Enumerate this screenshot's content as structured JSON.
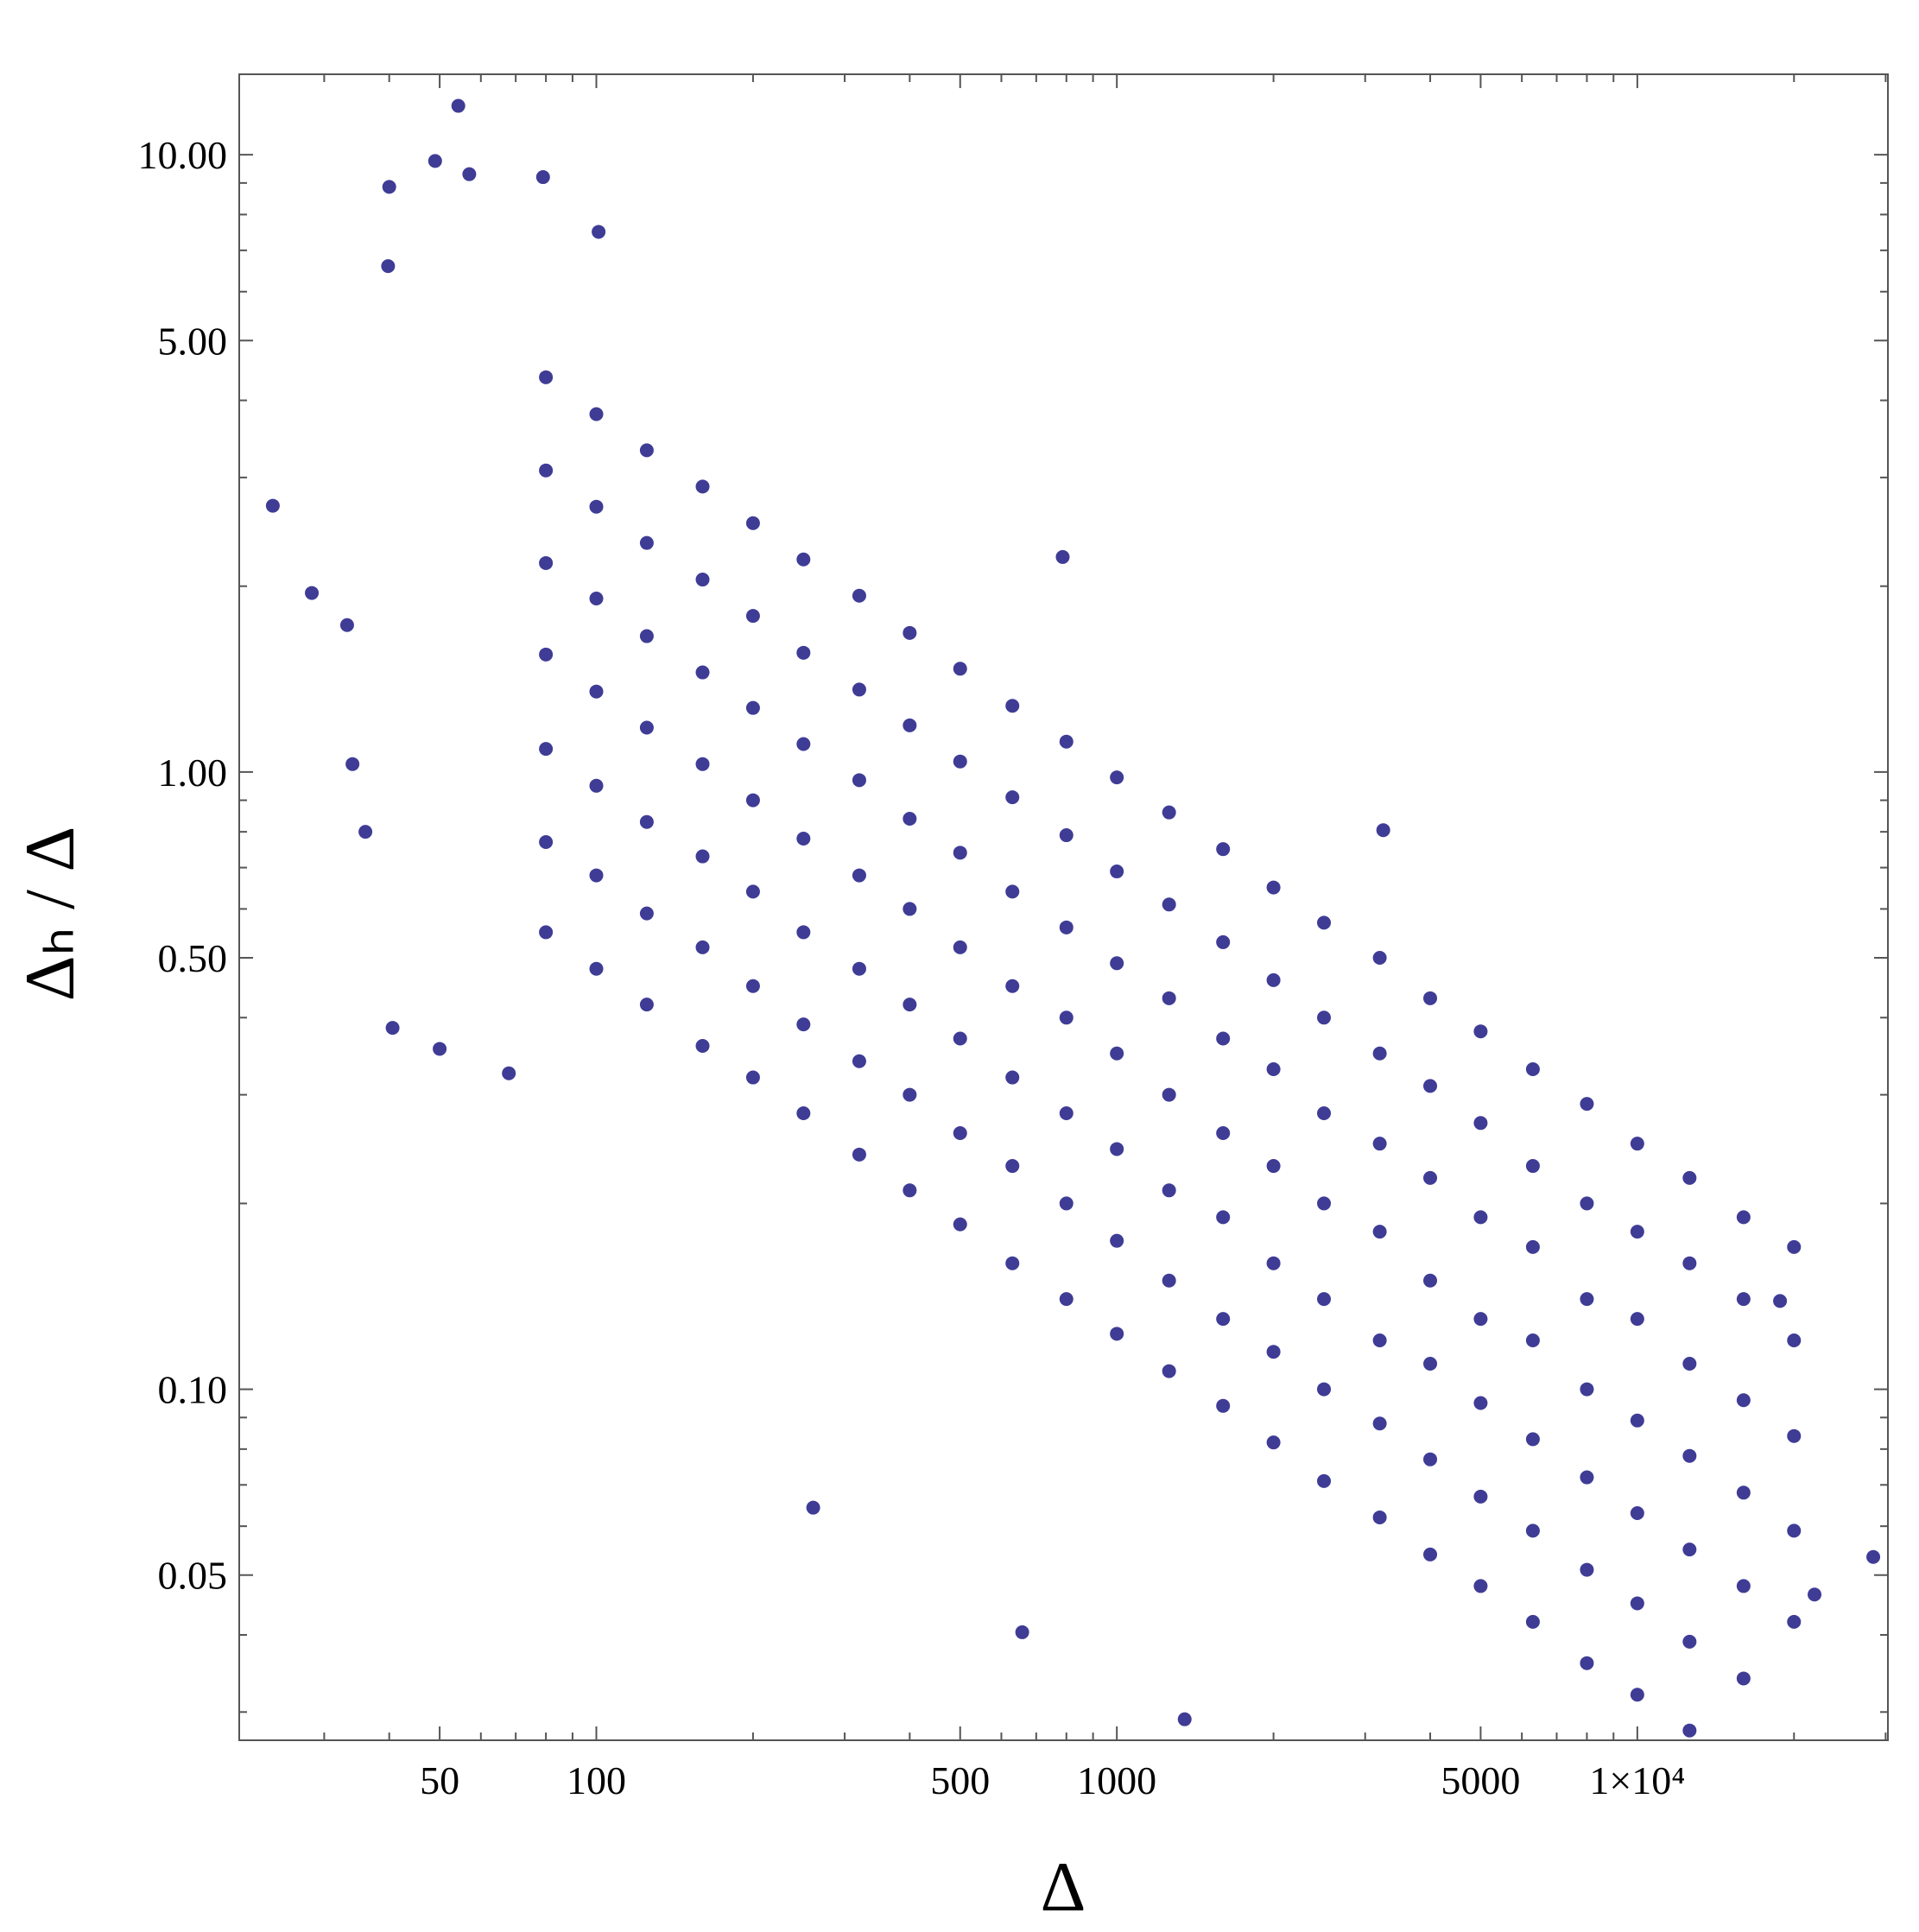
{
  "chart_data": {
    "type": "scatter",
    "xlabel": "Δ",
    "ylabel": "Δₕ / Δ",
    "xscale": "log",
    "yscale": "log",
    "grid": false,
    "color": "#3f3c96",
    "xlim": [
      20.6,
      30300
    ],
    "ylim": [
      0.027,
      13.5
    ],
    "xticks": [
      50,
      100,
      500,
      1000,
      5000,
      {
        "value": 10000,
        "label": "1×10⁴"
      }
    ],
    "yticks": [
      {
        "value": 0.05,
        "label": "0.05"
      },
      {
        "value": 0.1,
        "label": "0.10"
      },
      {
        "value": 0.5,
        "label": "0.50"
      },
      {
        "value": 1,
        "label": "1.00"
      },
      {
        "value": 5,
        "label": "5.00"
      },
      {
        "value": 10,
        "label": "10.00"
      }
    ],
    "xminorticks": [
      30,
      40,
      60,
      70,
      80,
      90,
      200,
      300,
      400,
      600,
      700,
      800,
      900,
      2000,
      3000,
      4000,
      6000,
      7000,
      8000,
      9000,
      20000,
      30000
    ],
    "yminorticks": [
      0.03,
      0.04,
      0.06,
      0.07,
      0.08,
      0.09,
      0.2,
      0.3,
      0.4,
      0.6,
      0.7,
      0.8,
      0.9,
      2,
      3,
      4,
      6,
      7,
      8,
      9
    ],
    "x": [
      80,
      80,
      80,
      80,
      80,
      80,
      80,
      100,
      100,
      100,
      100,
      100,
      100,
      100,
      125,
      125,
      125,
      125,
      125,
      125,
      125,
      160,
      160,
      160,
      160,
      160,
      160,
      160,
      200,
      200,
      200,
      200,
      200,
      200,
      200,
      250,
      250,
      250,
      250,
      250,
      250,
      250,
      320,
      320,
      320,
      320,
      320,
      320,
      320,
      400,
      400,
      400,
      400,
      400,
      400,
      400,
      500,
      500,
      500,
      500,
      500,
      500,
      500,
      630,
      630,
      630,
      630,
      630,
      630,
      630,
      800,
      800,
      800,
      800,
      800,
      800,
      800,
      1000,
      1000,
      1000,
      1000,
      1000,
      1000,
      1000,
      1260,
      1260,
      1260,
      1260,
      1260,
      1260,
      1260,
      1600,
      1600,
      1600,
      1600,
      1600,
      1600,
      1600,
      2000,
      2000,
      2000,
      2000,
      2000,
      2000,
      2000,
      2500,
      2500,
      2500,
      2500,
      2500,
      2500,
      2500,
      3200,
      3200,
      3200,
      3200,
      3200,
      3200,
      3200,
      4000,
      4000,
      4000,
      4000,
      4000,
      4000,
      4000,
      5000,
      5000,
      5000,
      5000,
      5000,
      5000,
      5000,
      6300,
      6300,
      6300,
      6300,
      6300,
      6300,
      6300,
      8000,
      8000,
      8000,
      8000,
      8000,
      8000,
      8000,
      10000,
      10000,
      10000,
      10000,
      10000,
      10000,
      10000,
      12600,
      12600,
      12600,
      12600,
      12600,
      12600,
      12600,
      16000,
      16000,
      16000,
      16000,
      16000,
      16000,
      20000,
      20000,
      20000,
      20000,
      20000,
      23.9,
      28.4,
      33.2,
      34,
      36,
      40.6,
      40,
      49,
      54.3,
      50,
      67.9,
      39.8,
      57,
      79,
      101,
      787,
      3250,
      261,
      658,
      28400,
      21900,
      1350,
      18800
    ],
    "values": [
      0.55,
      0.77,
      1.09,
      1.55,
      2.18,
      3.08,
      4.36,
      0.48,
      0.68,
      0.95,
      1.35,
      1.91,
      2.69,
      3.8,
      0.42,
      0.59,
      0.83,
      1.18,
      1.66,
      2.35,
      3.32,
      0.36,
      0.52,
      0.73,
      1.03,
      1.45,
      2.05,
      2.9,
      0.32,
      0.45,
      0.64,
      0.9,
      1.27,
      1.79,
      2.53,
      0.28,
      0.39,
      0.55,
      0.78,
      1.11,
      1.56,
      2.21,
      0.24,
      0.34,
      0.48,
      0.68,
      0.97,
      1.36,
      1.93,
      0.21,
      0.3,
      0.42,
      0.6,
      0.84,
      1.19,
      1.68,
      0.185,
      0.26,
      0.37,
      0.52,
      0.74,
      1.04,
      1.47,
      0.16,
      0.23,
      0.32,
      0.45,
      0.64,
      0.91,
      1.28,
      0.14,
      0.2,
      0.28,
      0.4,
      0.56,
      0.79,
      1.12,
      0.123,
      0.174,
      0.245,
      0.35,
      0.49,
      0.69,
      0.98,
      0.107,
      0.15,
      0.21,
      0.3,
      0.43,
      0.61,
      0.86,
      0.094,
      0.13,
      0.19,
      0.26,
      0.37,
      0.53,
      0.75,
      0.082,
      0.115,
      0.16,
      0.23,
      0.33,
      0.46,
      0.65,
      0.071,
      0.1,
      0.14,
      0.2,
      0.28,
      0.4,
      0.57,
      0.062,
      0.088,
      0.12,
      0.18,
      0.25,
      0.35,
      0.5,
      0.054,
      0.077,
      0.11,
      0.15,
      0.22,
      0.31,
      0.43,
      0.048,
      0.067,
      0.095,
      0.13,
      0.19,
      0.27,
      0.38,
      0.042,
      0.059,
      0.083,
      0.12,
      0.17,
      0.23,
      0.33,
      0.036,
      0.051,
      0.072,
      0.1,
      0.14,
      0.2,
      0.29,
      0.032,
      0.045,
      0.063,
      0.089,
      0.13,
      0.18,
      0.25,
      0.028,
      0.039,
      0.055,
      0.078,
      0.11,
      0.16,
      0.22,
      0.034,
      0.048,
      0.068,
      0.096,
      0.14,
      0.19,
      0.042,
      0.059,
      0.084,
      0.12,
      0.17,
      2.7,
      1.95,
      1.73,
      1.03,
      0.8,
      0.385,
      8.87,
      9.77,
      12,
      0.356,
      0.325,
      6.6,
      9.3,
      9.2,
      7.5,
      2.23,
      0.805,
      0.0643,
      0.0404,
      0.0535,
      0.0465,
      0.0292,
      0.139
    ]
  }
}
